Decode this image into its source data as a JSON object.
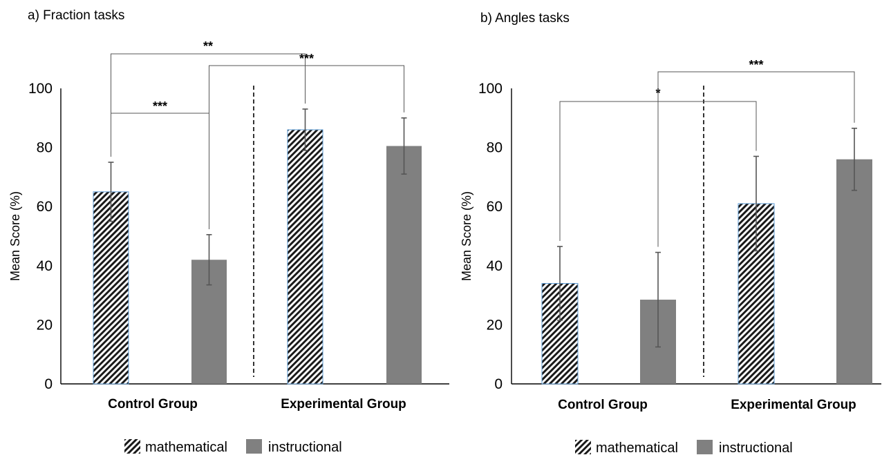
{
  "chart_data": [
    {
      "type": "bar",
      "title": "a) Fraction tasks",
      "ylabel": "Mean Score (%)",
      "ylim": [
        0,
        100
      ],
      "yticks": [
        0,
        20,
        40,
        60,
        80,
        100
      ],
      "categories": [
        "Control Group",
        "Experimental Group"
      ],
      "series": [
        {
          "name": "mathematical",
          "values": [
            65,
            86
          ],
          "errors": [
            10,
            7
          ],
          "pattern": "hatched"
        },
        {
          "name": "instructional",
          "values": [
            42,
            80.5
          ],
          "errors": [
            8.5,
            9.5
          ],
          "pattern": "solid"
        }
      ],
      "significance": [
        {
          "label": "***",
          "from": [
            0,
            0
          ],
          "to": [
            0,
            1
          ]
        },
        {
          "label": "**",
          "from": [
            0,
            0
          ],
          "to": [
            1,
            0
          ]
        },
        {
          "label": "***",
          "from": [
            0,
            1
          ],
          "to": [
            1,
            1
          ]
        }
      ],
      "divider": "dashed",
      "legend": "bottom-center"
    },
    {
      "type": "bar",
      "title": "b) Angles tasks",
      "ylabel": "Mean Score (%)",
      "ylim": [
        0,
        100
      ],
      "yticks": [
        0,
        20,
        40,
        60,
        80,
        100
      ],
      "categories": [
        "Control Group",
        "Experimental Group"
      ],
      "series": [
        {
          "name": "mathematical",
          "values": [
            34,
            61
          ],
          "errors": [
            12.5,
            16
          ],
          "pattern": "hatched"
        },
        {
          "name": "instructional",
          "values": [
            28.5,
            76
          ],
          "errors": [
            16,
            10.5
          ],
          "pattern": "solid"
        }
      ],
      "significance": [
        {
          "label": "*",
          "from": [
            0,
            0
          ],
          "to": [
            1,
            0
          ]
        },
        {
          "label": "***",
          "from": [
            0,
            1
          ],
          "to": [
            1,
            1
          ]
        }
      ],
      "divider": "dashed",
      "legend": "bottom-center"
    }
  ],
  "colors": {
    "bar": "#808080",
    "hatch": "#1a1a1a",
    "hatch_outline": "#5b9bd5",
    "axis": "#000000",
    "error": "#555555"
  }
}
